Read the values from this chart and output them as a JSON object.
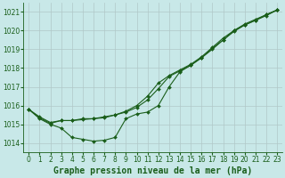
{
  "xlabel": "Graphe pression niveau de la mer (hPa)",
  "ylim": [
    1013.5,
    1021.5
  ],
  "xlim": [
    -0.5,
    23.5
  ],
  "yticks": [
    1014,
    1015,
    1016,
    1017,
    1018,
    1019,
    1020,
    1021
  ],
  "xticks": [
    0,
    1,
    2,
    3,
    4,
    5,
    6,
    7,
    8,
    9,
    10,
    11,
    12,
    13,
    14,
    15,
    16,
    17,
    18,
    19,
    20,
    21,
    22,
    23
  ],
  "background_color": "#c8e8e8",
  "grid_color": "#b0c8c8",
  "line_color": "#1a5e1a",
  "series": {
    "line1": [
      1015.8,
      1015.4,
      1015.1,
      1015.2,
      1015.2,
      1015.3,
      1015.3,
      1015.4,
      1015.5,
      1015.7,
      1016.0,
      1016.5,
      1017.2,
      1017.6,
      1017.9,
      1018.2,
      1018.6,
      1019.1,
      1019.6,
      1020.0,
      1020.35,
      1020.6,
      1020.85,
      1021.1
    ],
    "line2": [
      1015.8,
      1015.35,
      1015.05,
      1015.2,
      1015.2,
      1015.25,
      1015.3,
      1015.35,
      1015.5,
      1015.65,
      1015.9,
      1016.3,
      1016.9,
      1017.55,
      1017.85,
      1018.15,
      1018.55,
      1019.0,
      1019.5,
      1019.95,
      1020.3,
      1020.55,
      1020.8,
      1021.1
    ],
    "line3": [
      1015.8,
      1015.3,
      1015.0,
      1014.8,
      1014.3,
      1014.2,
      1014.1,
      1014.15,
      1014.3,
      1015.3,
      1015.55,
      1015.65,
      1016.0,
      1017.0,
      1017.8,
      1018.15,
      1018.55,
      1019.05,
      1019.5,
      1020.0,
      1020.3,
      1020.55,
      1020.85,
      1021.1
    ]
  },
  "marker": "D",
  "markersize": 2.0,
  "linewidth": 0.8,
  "fontsize_label": 7,
  "fontsize_tick": 5.5
}
